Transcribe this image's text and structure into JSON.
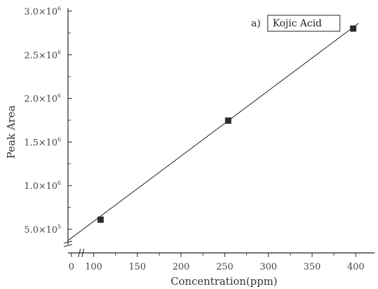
{
  "chart_data": {
    "type": "scatter",
    "title": "",
    "xlabel": "Concentration(ppm)",
    "ylabel": "Peak Area",
    "panel_label": "a)",
    "legend_text": "Kojic Acid",
    "legend_position": "top-right",
    "grid": false,
    "x_ticks": [
      0,
      100,
      150,
      200,
      250,
      300,
      350,
      400
    ],
    "x_tick_labels": [
      "0",
      "100",
      "150",
      "200",
      "250",
      "300",
      "350",
      "400"
    ],
    "y_ticks": [
      500000,
      1000000,
      1500000,
      2000000,
      2500000,
      3000000
    ],
    "y_tick_labels": [
      {
        "mantissa": "5.0",
        "exponent": "5"
      },
      {
        "mantissa": "1.0",
        "exponent": "6"
      },
      {
        "mantissa": "1.5",
        "exponent": "6"
      },
      {
        "mantissa": "2.0",
        "exponent": "6"
      },
      {
        "mantissa": "2.5",
        "exponent": "6"
      },
      {
        "mantissa": "3.0",
        "exponent": "6"
      }
    ],
    "x_axis_break": [
      0,
      100
    ],
    "y_axis_break": [
      0,
      500000
    ],
    "series": [
      {
        "points": [
          {
            "x": 108,
            "y": 610000
          },
          {
            "x": 254,
            "y": 1745000
          },
          {
            "x": 397,
            "y": 2800000
          }
        ],
        "fit_line": {
          "x_start": 0,
          "y_start": 370000,
          "x_end": 403,
          "y_end": 2860000
        }
      }
    ]
  }
}
